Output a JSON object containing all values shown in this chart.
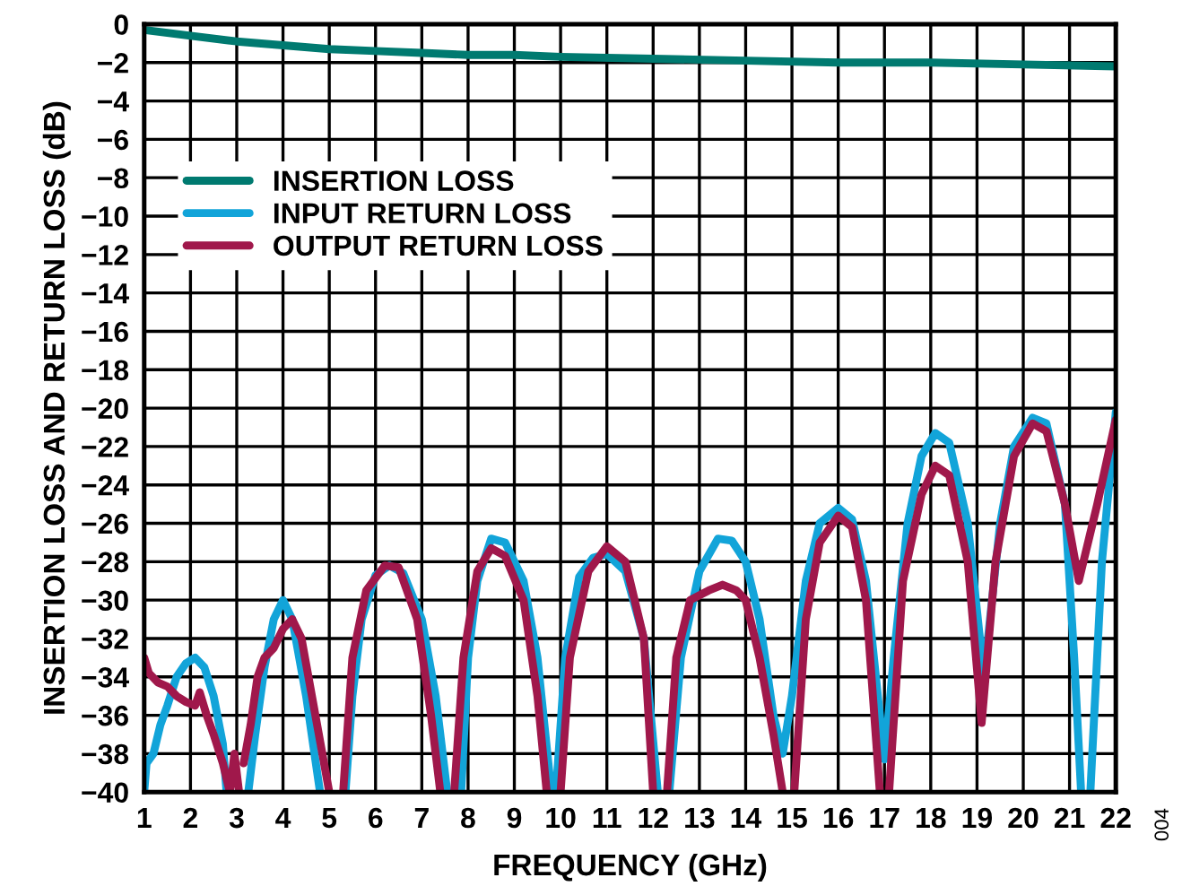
{
  "chart_data": {
    "type": "line",
    "xlabel": "FREQUENCY (GHz)",
    "ylabel": "INSERTION LOSS AND RETURN LOSS (dB)",
    "xlim": [
      1,
      22
    ],
    "xticks": [
      1,
      2,
      3,
      4,
      5,
      6,
      7,
      8,
      9,
      10,
      11,
      12,
      13,
      14,
      15,
      16,
      17,
      18,
      19,
      20,
      21,
      22
    ],
    "ylim": [
      -40,
      0
    ],
    "yticks": [
      0,
      {
        "value": -2,
        "label": "−2"
      },
      {
        "value": -4,
        "label": "−4"
      },
      {
        "value": -6,
        "label": "−6"
      },
      {
        "value": -8,
        "label": "−8"
      },
      {
        "value": -10,
        "label": "−10"
      },
      {
        "value": -12,
        "label": "−12"
      },
      {
        "value": -14,
        "label": "−14"
      },
      {
        "value": -16,
        "label": "−16"
      },
      {
        "value": -18,
        "label": "−18"
      },
      {
        "value": -20,
        "label": "−20"
      },
      {
        "value": -22,
        "label": "−22"
      },
      {
        "value": -24,
        "label": "−24"
      },
      {
        "value": -26,
        "label": "−26"
      },
      {
        "value": -28,
        "label": "−28"
      },
      {
        "value": -30,
        "label": "−30"
      },
      {
        "value": -32,
        "label": "−32"
      },
      {
        "value": -34,
        "label": "−34"
      },
      {
        "value": -36,
        "label": "−36"
      },
      {
        "value": -38,
        "label": "−38"
      },
      {
        "value": -40,
        "label": "−40"
      }
    ],
    "grid": true,
    "legend": "top left",
    "marker": "none",
    "line_style": "solid",
    "annotations": [
      "004"
    ],
    "series": [
      {
        "name": "INSERTION LOSS",
        "color": "#007a70",
        "x": [
          1,
          2,
          3,
          4,
          5,
          6,
          7,
          8,
          9,
          10,
          12,
          14,
          16,
          18,
          20,
          22
        ],
        "values": [
          -0.3,
          -0.6,
          -0.9,
          -1.1,
          -1.3,
          -1.4,
          -1.5,
          -1.6,
          -1.6,
          -1.7,
          -1.8,
          -1.9,
          -2.0,
          -2.0,
          -2.1,
          -2.2
        ]
      },
      {
        "name": "INPUT RETURN LOSS",
        "color": "#12a4d9",
        "x": [
          1.0,
          1.05,
          1.2,
          1.35,
          1.5,
          1.7,
          1.9,
          2.1,
          2.3,
          2.5,
          2.7,
          2.78,
          3.0,
          3.25,
          3.4,
          3.6,
          3.8,
          4.0,
          4.2,
          4.5,
          4.8,
          5.0,
          5.35,
          5.5,
          5.7,
          6.0,
          6.3,
          6.6,
          7.0,
          7.3,
          7.55,
          7.7,
          7.85,
          8.0,
          8.2,
          8.5,
          8.8,
          9.2,
          9.5,
          9.8,
          9.85,
          9.9,
          10.1,
          10.4,
          10.7,
          11.0,
          11.4,
          11.8,
          12.1,
          12.2,
          12.35,
          12.6,
          13.0,
          13.4,
          13.7,
          14.0,
          14.3,
          14.6,
          14.8,
          15.0,
          15.3,
          15.6,
          16.0,
          16.3,
          16.6,
          16.9,
          17.0,
          17.2,
          17.5,
          17.8,
          18.1,
          18.4,
          18.8,
          19.15,
          19.5,
          19.8,
          20.2,
          20.5,
          20.9,
          21.1,
          21.25,
          21.35,
          21.45,
          21.7,
          22.0
        ],
        "values": [
          -40,
          -38.5,
          -38,
          -36.5,
          -35.5,
          -34,
          -33.3,
          -33,
          -33.5,
          -35,
          -37.5,
          -40,
          null,
          -40,
          -37,
          -33.5,
          -31,
          -30,
          -31,
          -35,
          -40,
          null,
          -40,
          -35,
          -31,
          -28.7,
          -28.2,
          -28.6,
          -31,
          -35,
          -40,
          null,
          -40,
          -33,
          -29,
          -26.8,
          -27,
          -29,
          -33,
          -40,
          null,
          -40,
          -33,
          -28.8,
          -27.8,
          -27.6,
          -28.5,
          -32,
          -40,
          null,
          -40,
          -33,
          -28.5,
          -26.8,
          -26.9,
          -28,
          -31,
          -36,
          -38,
          -35,
          -29,
          -26,
          -25.2,
          -25.8,
          -29,
          -36,
          -38.3,
          -33,
          -26,
          -22.5,
          -21.3,
          -21.8,
          -26,
          -34,
          -26,
          -22,
          -20.5,
          -20.8,
          -25,
          -33,
          -40,
          null,
          -40,
          -28,
          -20.2
        ]
      },
      {
        "name": "OUTPUT RETURN LOSS",
        "color": "#a0184b",
        "x": [
          1.0,
          1.1,
          1.3,
          1.5,
          1.7,
          1.9,
          2.1,
          2.2,
          2.35,
          2.5,
          2.7,
          2.85,
          2.95,
          3.05,
          3.1,
          3.15,
          3.3,
          3.45,
          3.6,
          3.8,
          4.0,
          4.2,
          4.4,
          4.7,
          5.0,
          5.15,
          5.3,
          5.5,
          5.8,
          6.2,
          6.5,
          6.9,
          7.2,
          7.4,
          7.55,
          7.7,
          7.9,
          8.2,
          8.5,
          8.8,
          9.2,
          9.5,
          9.7,
          9.85,
          10.0,
          10.2,
          10.6,
          11.0,
          11.4,
          11.8,
          12.0,
          12.15,
          12.3,
          12.5,
          12.8,
          13.2,
          13.5,
          13.8,
          14.0,
          14.3,
          14.6,
          14.8,
          14.9,
          15.05,
          15.3,
          15.6,
          16.0,
          16.3,
          16.6,
          16.9,
          17.0,
          17.1,
          17.4,
          17.8,
          18.1,
          18.4,
          18.8,
          19.1,
          19.4,
          19.8,
          20.2,
          20.5,
          20.9,
          21.2,
          21.6,
          22.0
        ],
        "values": [
          -33,
          -33.8,
          -34.3,
          -34.5,
          -35,
          -35.3,
          -35.5,
          -34.8,
          -36,
          -37,
          -38.5,
          -40,
          -38,
          -40,
          null,
          -38.5,
          -36.5,
          -34,
          -33,
          -32.5,
          -31.5,
          -31,
          -32,
          -36,
          -40,
          null,
          -40,
          -33,
          -29.5,
          -28.2,
          -28.3,
          -31,
          -36,
          -40,
          null,
          -40,
          -33,
          -28.5,
          -27.3,
          -27.7,
          -30,
          -35,
          -40,
          null,
          -40,
          -33,
          -28.5,
          -27.2,
          -28,
          -32,
          -40,
          null,
          -40,
          -33,
          -30,
          -29.5,
          -29.2,
          -29.5,
          -30,
          -33,
          -37,
          -40,
          null,
          -40,
          -31,
          -27,
          -25.6,
          -26.2,
          -30,
          -40,
          null,
          -40,
          -29,
          -24.5,
          -23,
          -23.5,
          -28,
          -36.4,
          -28,
          -22.5,
          -20.8,
          -21.2,
          -25,
          -29,
          -25,
          -20.6
        ]
      }
    ]
  }
}
